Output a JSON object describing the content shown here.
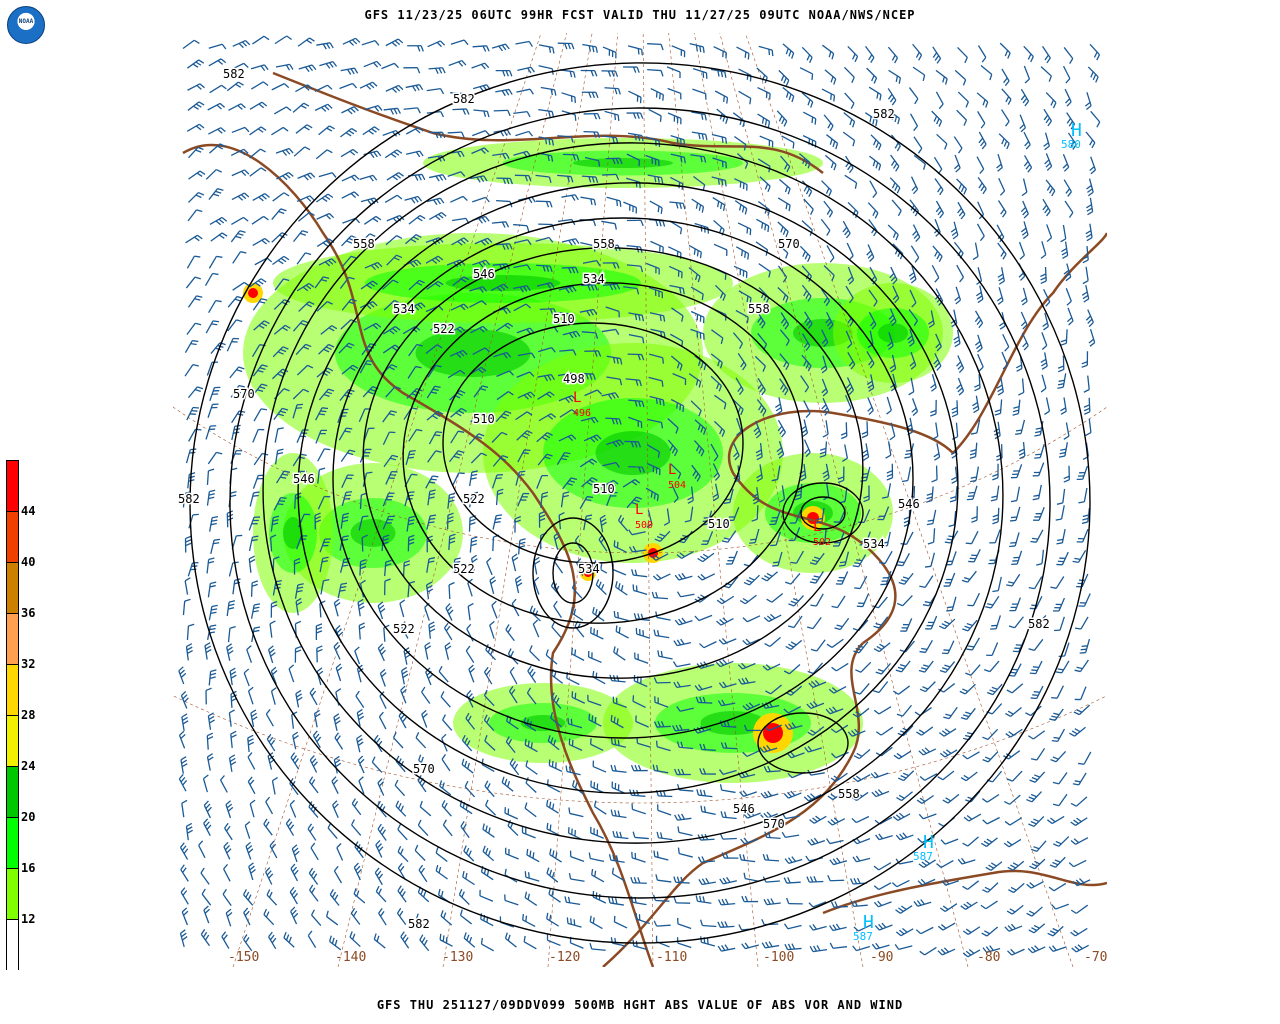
{
  "header": {
    "title": "GFS 11/23/25 06UTC 99HR FCST VALID THU 11/27/25 09UTC NOAA/NWS/NCEP"
  },
  "footer": {
    "caption": "GFS THU 251127/09DDV099 500MB HGHT ABS VALUE OF ABS VOR AND WIND"
  },
  "logo": {
    "text": "NOAA"
  },
  "colorbar": {
    "labels": [
      "44",
      "40",
      "36",
      "32",
      "28",
      "24",
      "20",
      "16",
      "12"
    ],
    "colors": [
      "#ff0000",
      "#f04000",
      "#cd8000",
      "#ffa050",
      "#ffd700",
      "#f0f000",
      "#00c800",
      "#00ff00",
      "#80ff00",
      "#ffffff"
    ]
  },
  "map": {
    "longitude_labels": [
      "-150",
      "-140",
      "-130",
      "-120",
      "-110",
      "-100",
      "-90",
      "-80",
      "-70"
    ],
    "contour_labels": [
      "582",
      "582",
      "582",
      "570",
      "570",
      "570",
      "570",
      "558",
      "558",
      "558",
      "558",
      "546",
      "546",
      "546",
      "546",
      "534",
      "534",
      "534",
      "534",
      "522",
      "522",
      "522",
      "522",
      "510",
      "510",
      "510",
      "510",
      "498",
      "582",
      "582",
      "582"
    ],
    "low_labels": [
      "496",
      "504",
      "500",
      "502"
    ],
    "high_labels": [
      "580",
      "587",
      "587"
    ],
    "colors": {
      "contour": "#000000",
      "coast": "#8b4a23",
      "barb": "#1a5a96",
      "high": "#00bfff",
      "low": "#ff0000",
      "grid": "#a0522d"
    }
  }
}
